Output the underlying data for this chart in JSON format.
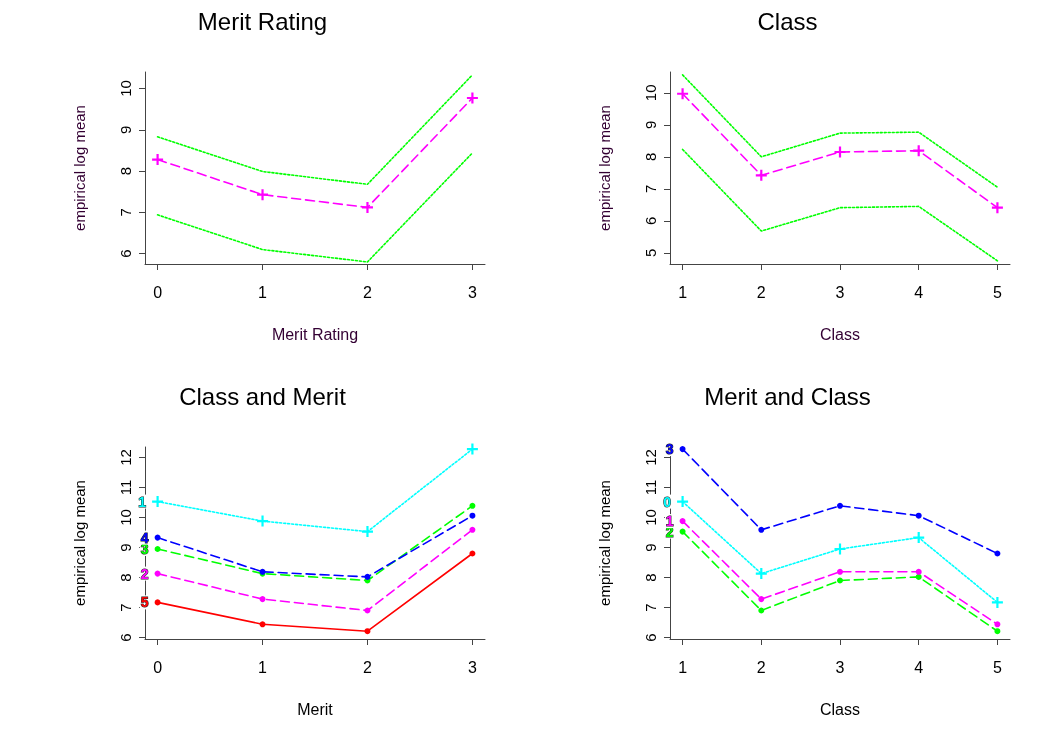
{
  "chart_data": [
    {
      "type": "line",
      "title": "Merit Rating",
      "xlabel": "Merit Rating",
      "ylabel": "empirical log mean",
      "x": [
        0,
        1,
        2,
        3
      ],
      "xlim": [
        -0.12,
        3.12
      ],
      "xticks": [
        0,
        1,
        2,
        3
      ],
      "ylim": [
        5.75,
        10.4
      ],
      "yticks": [
        6,
        7,
        8,
        9,
        10
      ],
      "grid": false,
      "legend": false,
      "series": [
        {
          "color": "#00ff00",
          "values": [
            8.83,
            7.99,
            7.68,
            10.33
          ],
          "marker": "none",
          "line_style": "dotted"
        },
        {
          "color": "#ff00ff",
          "values": [
            8.28,
            7.43,
            7.12,
            9.77
          ],
          "marker": "cross",
          "line_style": "dashed"
        },
        {
          "color": "#00ff00",
          "values": [
            6.94,
            6.1,
            5.8,
            8.44
          ],
          "marker": "none",
          "line_style": "dotted"
        }
      ]
    },
    {
      "type": "line",
      "title": "Class",
      "xlabel": "Class",
      "ylabel": "empirical log mean",
      "x": [
        1,
        2,
        3,
        4,
        5
      ],
      "xlim": [
        0.84,
        5.16
      ],
      "xticks": [
        1,
        2,
        3,
        4,
        5
      ],
      "ylim": [
        4.65,
        10.65
      ],
      "yticks": [
        5,
        6,
        7,
        8,
        9,
        10
      ],
      "grid": false,
      "legend": false,
      "series": [
        {
          "color": "#00ff00",
          "values": [
            10.56,
            8.0,
            8.74,
            8.77,
            7.05
          ],
          "marker": "none",
          "line_style": "dotted"
        },
        {
          "color": "#ff00ff",
          "values": [
            9.97,
            7.42,
            8.15,
            8.19,
            6.41
          ],
          "marker": "cross",
          "line_style": "dashed"
        },
        {
          "color": "#00ff00",
          "values": [
            8.23,
            5.68,
            6.41,
            6.45,
            4.75
          ],
          "marker": "none",
          "line_style": "dotted"
        }
      ]
    },
    {
      "type": "line",
      "title": "Class and Merit",
      "xlabel": "Merit",
      "ylabel": "empirical log mean",
      "x": [
        0,
        1,
        2,
        3
      ],
      "xlim": [
        -0.12,
        3.12
      ],
      "xticks": [
        0,
        1,
        2,
        3
      ],
      "ylim": [
        5.95,
        12.35
      ],
      "yticks": [
        6,
        7,
        8,
        9,
        10,
        11,
        12
      ],
      "grid": false,
      "legend": false,
      "series": [
        {
          "name": "1",
          "color": "#00ffff",
          "values": [
            10.53,
            9.88,
            9.53,
            12.28
          ],
          "marker": "cross",
          "line_style": "dotted"
        },
        {
          "name": "4",
          "color": "#0000ff",
          "values": [
            9.33,
            8.19,
            8.02,
            10.06
          ],
          "marker": "circle",
          "line_style": "dashed"
        },
        {
          "name": "3",
          "color": "#00ff00",
          "values": [
            8.95,
            8.13,
            7.9,
            10.39
          ],
          "marker": "circle",
          "line_style": "dashed"
        },
        {
          "name": "2",
          "color": "#ff00ff",
          "values": [
            8.13,
            7.28,
            6.9,
            9.59
          ],
          "marker": "circle",
          "line_style": "dashed"
        },
        {
          "name": "5",
          "color": "#ff0000",
          "values": [
            7.17,
            6.44,
            6.21,
            8.8
          ],
          "marker": "circle",
          "line_style": "solid"
        }
      ]
    },
    {
      "type": "line",
      "title": "Merit and Class",
      "xlabel": "Class",
      "ylabel": "empirical log mean",
      "x": [
        1,
        2,
        3,
        4,
        5
      ],
      "xlim": [
        0.84,
        5.16
      ],
      "xticks": [
        1,
        2,
        3,
        4,
        5
      ],
      "ylim": [
        5.95,
        12.35
      ],
      "yticks": [
        6,
        7,
        8,
        9,
        10,
        11,
        12
      ],
      "grid": false,
      "legend": false,
      "series": [
        {
          "name": "3",
          "color": "#0000ff",
          "values": [
            12.28,
            9.59,
            10.39,
            10.06,
            8.8
          ],
          "marker": "circle",
          "line_style": "dashed"
        },
        {
          "name": "0",
          "color": "#00ffff",
          "values": [
            10.53,
            8.13,
            8.95,
            9.33,
            7.17
          ],
          "marker": "cross",
          "line_style": "dotted"
        },
        {
          "name": "1",
          "color": "#ff00ff",
          "values": [
            9.88,
            7.28,
            8.19,
            8.19,
            6.44
          ],
          "marker": "circle",
          "line_style": "dashed"
        },
        {
          "name": "2",
          "color": "#00ff00",
          "values": [
            9.53,
            6.9,
            7.9,
            8.02,
            6.21
          ],
          "marker": "circle",
          "line_style": "dashed"
        }
      ]
    }
  ]
}
